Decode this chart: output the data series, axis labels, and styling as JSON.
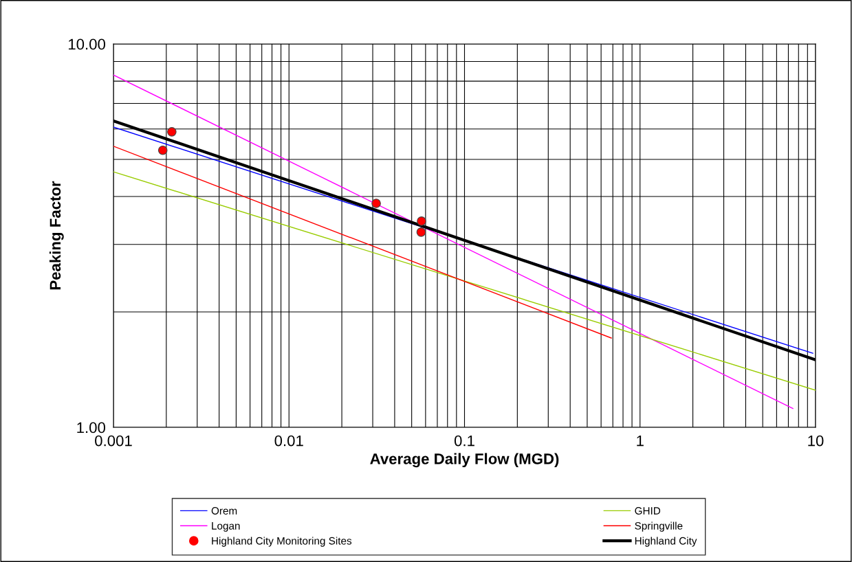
{
  "chart_data": {
    "type": "line",
    "xlabel": "Average Daily Flow (MGD)",
    "ylabel": "Peaking Factor",
    "log": "xy",
    "xlim": [
      0.001,
      10
    ],
    "xticks": [
      0.001,
      0.01,
      0.1,
      1,
      10
    ],
    "ylim": [
      1,
      10
    ],
    "yticks": [
      {
        "value": 1,
        "label": "1.00"
      },
      {
        "value": 10,
        "label": "10.00"
      }
    ],
    "grid": true,
    "legend": "bottom",
    "series": [
      {
        "name": "Orem",
        "color": "#0000ff",
        "x": [
          0.001,
          9.65
        ],
        "values": [
          6.07,
          1.56
        ]
      },
      {
        "name": "Logan",
        "color": "#ff00ff",
        "x": [
          0.001,
          7.43
        ],
        "values": [
          8.3,
          1.12
        ]
      },
      {
        "name": "Highland City Monitoring Sites",
        "type": "scatter",
        "marker": "circle",
        "color": "#ff0000",
        "x": [
          0.00191,
          0.00215,
          0.0314,
          0.0569,
          0.0566
        ],
        "values": [
          5.28,
          5.9,
          3.84,
          3.45,
          3.23
        ]
      },
      {
        "name": "GHID",
        "color": "#99cc00",
        "x": [
          0.001,
          10
        ],
        "values": [
          4.64,
          1.25
        ]
      },
      {
        "name": "Springville",
        "color": "#ff0000",
        "x": [
          0.001,
          0.686
        ],
        "values": [
          5.41,
          1.71
        ]
      },
      {
        "name": "Highland City",
        "color": "#000000",
        "x": [
          0.001,
          10
        ],
        "values": [
          6.3,
          1.5
        ]
      }
    ]
  }
}
